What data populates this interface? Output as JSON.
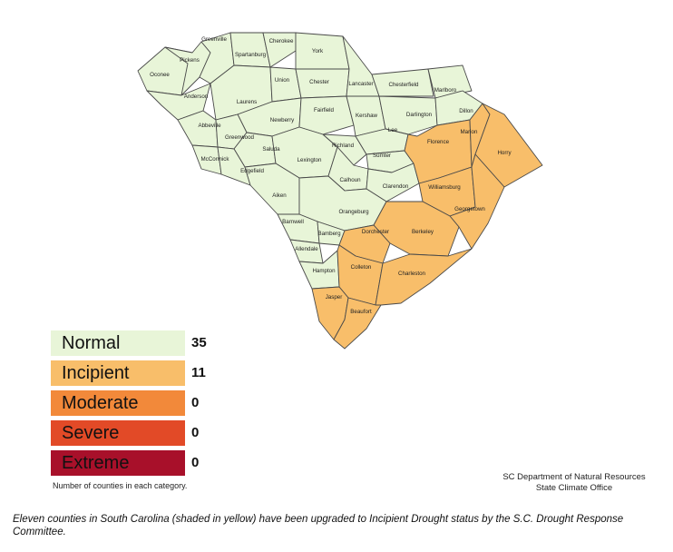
{
  "categories": [
    {
      "key": "normal",
      "label": "Normal",
      "count": "35",
      "color": "#E8F5D8"
    },
    {
      "key": "incipient",
      "label": "Incipient",
      "count": "11",
      "color": "#F8BE6A"
    },
    {
      "key": "moderate",
      "label": "Moderate",
      "count": "0",
      "color": "#F2893A"
    },
    {
      "key": "severe",
      "label": "Severe",
      "count": "0",
      "color": "#E24A27"
    },
    {
      "key": "extreme",
      "label": "Extreme",
      "count": "0",
      "color": "#A8102A"
    }
  ],
  "legend_note": "Number of counties in each category.",
  "credit": [
    "SC Department of Natural Resources",
    "State Climate Office"
  ],
  "caption": "Eleven counties in South Carolina (shaded in yellow) have been upgraded to Incipient Drought status by the S.C. Drought Response Committee.",
  "counties": [
    {
      "name": "Oconee",
      "status": "normal"
    },
    {
      "name": "Pickens",
      "status": "normal"
    },
    {
      "name": "Greenville",
      "status": "normal"
    },
    {
      "name": "Spartanburg",
      "status": "normal"
    },
    {
      "name": "Cherokee",
      "status": "normal"
    },
    {
      "name": "York",
      "status": "normal"
    },
    {
      "name": "Anderson",
      "status": "normal"
    },
    {
      "name": "Laurens",
      "status": "normal"
    },
    {
      "name": "Union",
      "status": "normal"
    },
    {
      "name": "Chester",
      "status": "normal"
    },
    {
      "name": "Lancaster",
      "status": "normal"
    },
    {
      "name": "Chesterfield",
      "status": "normal"
    },
    {
      "name": "Marlboro",
      "status": "normal"
    },
    {
      "name": "Abbeville",
      "status": "normal"
    },
    {
      "name": "Newberry",
      "status": "normal"
    },
    {
      "name": "Fairfield",
      "status": "normal"
    },
    {
      "name": "Kershaw",
      "status": "normal"
    },
    {
      "name": "Darlington",
      "status": "normal"
    },
    {
      "name": "Dillon",
      "status": "normal"
    },
    {
      "name": "Greenwood",
      "status": "normal"
    },
    {
      "name": "McCormick",
      "status": "normal"
    },
    {
      "name": "Saluda",
      "status": "normal"
    },
    {
      "name": "Edgefield",
      "status": "normal"
    },
    {
      "name": "Lexington",
      "status": "normal"
    },
    {
      "name": "Richland",
      "status": "normal"
    },
    {
      "name": "Lee",
      "status": "normal"
    },
    {
      "name": "Sumter",
      "status": "normal"
    },
    {
      "name": "Calhoun",
      "status": "normal"
    },
    {
      "name": "Clarendon",
      "status": "normal"
    },
    {
      "name": "Aiken",
      "status": "normal"
    },
    {
      "name": "Orangeburg",
      "status": "normal"
    },
    {
      "name": "Barnwell",
      "status": "normal"
    },
    {
      "name": "Bamberg",
      "status": "normal"
    },
    {
      "name": "Allendale",
      "status": "normal"
    },
    {
      "name": "Hampton",
      "status": "normal"
    },
    {
      "name": "Florence",
      "status": "incipient"
    },
    {
      "name": "Marion",
      "status": "incipient"
    },
    {
      "name": "Horry",
      "status": "incipient"
    },
    {
      "name": "Williamsburg",
      "status": "incipient"
    },
    {
      "name": "Georgetown",
      "status": "incipient"
    },
    {
      "name": "Berkeley",
      "status": "incipient"
    },
    {
      "name": "Dorchester",
      "status": "incipient"
    },
    {
      "name": "Colleton",
      "status": "incipient"
    },
    {
      "name": "Charleston",
      "status": "incipient"
    },
    {
      "name": "Jasper",
      "status": "incipient"
    },
    {
      "name": "Beaufort",
      "status": "incipient"
    }
  ]
}
